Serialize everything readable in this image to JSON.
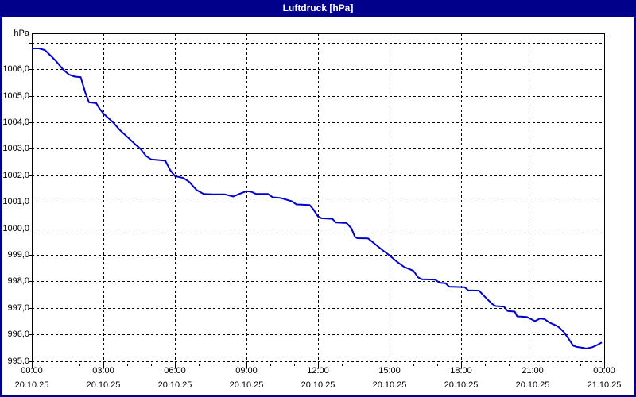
{
  "window": {
    "title": "Luftdruck [hPa]"
  },
  "colors": {
    "frame": "#00008B",
    "title_text": "#FFFFFF",
    "background": "#FFFFFF",
    "grid": "#000000",
    "axis": "#000000",
    "text": "#000000",
    "line": "#0000CD"
  },
  "chart_data": {
    "type": "line",
    "title": "Luftdruck [hPa]",
    "ylabel": "hPa",
    "xlabel": "",
    "grid": "dashed",
    "legend": "none",
    "ylim": [
      994.9,
      1007.35
    ],
    "xlim_hours": [
      0,
      24
    ],
    "minor_xtick_hours": 1,
    "yticks": [
      {
        "value": 995,
        "label": "995,0"
      },
      {
        "value": 996,
        "label": "996,0"
      },
      {
        "value": 997,
        "label": "997,0"
      },
      {
        "value": 998,
        "label": "998,0"
      },
      {
        "value": 999,
        "label": "999,0"
      },
      {
        "value": 1000,
        "label": "1000,0"
      },
      {
        "value": 1001,
        "label": "1001,0"
      },
      {
        "value": 1002,
        "label": "1002,0"
      },
      {
        "value": 1003,
        "label": "1003,0"
      },
      {
        "value": 1004,
        "label": "1004,0"
      },
      {
        "value": 1005,
        "label": "1005,0"
      },
      {
        "value": 1006,
        "label": "1006,0"
      },
      {
        "value": 1007,
        "label": ""
      }
    ],
    "xticks": [
      {
        "hour": 0,
        "time": "00:00",
        "date": "20.10.25"
      },
      {
        "hour": 3,
        "time": "03:00",
        "date": "20.10.25"
      },
      {
        "hour": 6,
        "time": "06:00",
        "date": "20.10.25"
      },
      {
        "hour": 9,
        "time": "09:00",
        "date": "20.10.25"
      },
      {
        "hour": 12,
        "time": "12:00",
        "date": "20.10.25"
      },
      {
        "hour": 15,
        "time": "15:00",
        "date": "20.10.25"
      },
      {
        "hour": 18,
        "time": "18:00",
        "date": "20.10.25"
      },
      {
        "hour": 21,
        "time": "21:00",
        "date": "20.10.25"
      },
      {
        "hour": 24,
        "time": "00:00",
        "date": "21.10.25"
      }
    ],
    "series": [
      {
        "name": "Luftdruck",
        "unit": "hPa",
        "color": "#0000CD",
        "points_hour_hpa": [
          [
            0.0,
            1006.78
          ],
          [
            0.3,
            1006.78
          ],
          [
            0.55,
            1006.72
          ],
          [
            0.8,
            1006.5
          ],
          [
            1.0,
            1006.32
          ],
          [
            1.3,
            1006.0
          ],
          [
            1.55,
            1005.8
          ],
          [
            1.8,
            1005.72
          ],
          [
            2.05,
            1005.7
          ],
          [
            2.25,
            1005.1
          ],
          [
            2.4,
            1004.75
          ],
          [
            2.7,
            1004.72
          ],
          [
            2.85,
            1004.5
          ],
          [
            3.0,
            1004.33
          ],
          [
            3.4,
            1004.0
          ],
          [
            3.7,
            1003.7
          ],
          [
            4.0,
            1003.45
          ],
          [
            4.3,
            1003.2
          ],
          [
            4.55,
            1003.0
          ],
          [
            4.8,
            1002.72
          ],
          [
            5.0,
            1002.6
          ],
          [
            5.6,
            1002.55
          ],
          [
            5.8,
            1002.2
          ],
          [
            6.0,
            1001.97
          ],
          [
            6.35,
            1001.9
          ],
          [
            6.6,
            1001.75
          ],
          [
            6.9,
            1001.45
          ],
          [
            7.2,
            1001.3
          ],
          [
            7.6,
            1001.28
          ],
          [
            8.1,
            1001.28
          ],
          [
            8.45,
            1001.2
          ],
          [
            8.7,
            1001.3
          ],
          [
            9.0,
            1001.4
          ],
          [
            9.2,
            1001.38
          ],
          [
            9.4,
            1001.3
          ],
          [
            9.9,
            1001.3
          ],
          [
            10.1,
            1001.17
          ],
          [
            10.4,
            1001.15
          ],
          [
            10.6,
            1001.1
          ],
          [
            10.9,
            1001.02
          ],
          [
            11.1,
            1000.9
          ],
          [
            11.65,
            1000.88
          ],
          [
            11.8,
            1000.72
          ],
          [
            12.0,
            1000.45
          ],
          [
            12.15,
            1000.38
          ],
          [
            12.6,
            1000.36
          ],
          [
            12.75,
            1000.22
          ],
          [
            13.2,
            1000.2
          ],
          [
            13.4,
            1000.0
          ],
          [
            13.55,
            999.68
          ],
          [
            13.65,
            999.63
          ],
          [
            14.1,
            999.62
          ],
          [
            14.4,
            999.4
          ],
          [
            14.7,
            999.18
          ],
          [
            15.0,
            998.98
          ],
          [
            15.3,
            998.75
          ],
          [
            15.6,
            998.55
          ],
          [
            16.0,
            998.4
          ],
          [
            16.2,
            998.15
          ],
          [
            16.35,
            998.08
          ],
          [
            16.9,
            998.07
          ],
          [
            17.1,
            997.95
          ],
          [
            17.35,
            997.93
          ],
          [
            17.5,
            997.8
          ],
          [
            18.15,
            997.78
          ],
          [
            18.3,
            997.66
          ],
          [
            18.75,
            997.65
          ],
          [
            19.0,
            997.42
          ],
          [
            19.3,
            997.15
          ],
          [
            19.45,
            997.07
          ],
          [
            19.8,
            997.05
          ],
          [
            19.95,
            996.88
          ],
          [
            20.25,
            996.86
          ],
          [
            20.35,
            996.68
          ],
          [
            20.75,
            996.66
          ],
          [
            21.0,
            996.55
          ],
          [
            21.1,
            996.5
          ],
          [
            21.3,
            996.6
          ],
          [
            21.5,
            996.58
          ],
          [
            21.7,
            996.45
          ],
          [
            22.0,
            996.33
          ],
          [
            22.1,
            996.27
          ],
          [
            22.3,
            996.1
          ],
          [
            22.5,
            995.85
          ],
          [
            22.7,
            995.58
          ],
          [
            22.85,
            995.53
          ],
          [
            23.1,
            995.5
          ],
          [
            23.25,
            995.47
          ],
          [
            23.5,
            995.52
          ],
          [
            23.7,
            995.6
          ],
          [
            23.9,
            995.7
          ]
        ]
      }
    ]
  }
}
